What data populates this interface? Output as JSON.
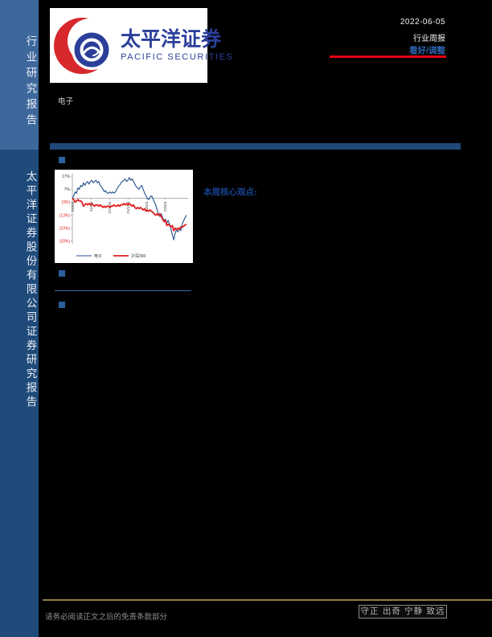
{
  "sidebar": {
    "top_label": "行业研究报告",
    "bottom_label": "太平洋证券股份有限公司证券研究报告"
  },
  "logo": {
    "cn": "太平洋证券",
    "en": "PACIFIC SECURITIES"
  },
  "header": {
    "date": "2022-06-05",
    "report_type": "行业周报",
    "rating": "看好/调整"
  },
  "industry_label": "电子",
  "section": {
    "core_view_label": "本周核心观点:"
  },
  "colors": {
    "sidebar_top_bg": "#3e689c",
    "sidebar_bottom_bg": "#1f4a7a",
    "accent_bar": "#1f4977",
    "bullet": "#2d5e9e",
    "rating_blue": "#2f62b0",
    "rating_underline_red": "#e60012",
    "logo_red": "#d7282d",
    "logo_blue": "#2b3f9a",
    "footer_line_gold": "#8e7f43",
    "series_electronics": "#24508c",
    "series_hs300": "#e01f1f"
  },
  "chart_data": {
    "type": "line",
    "title": "",
    "xlabel": "",
    "ylabel": "",
    "x_unit": "months since 2021-06",
    "xlim": [
      0,
      12.5
    ],
    "ylim": [
      -35,
      19
    ],
    "zero_line": true,
    "legend_position": "bottom",
    "x_ticks": {
      "labels": [
        "21/6/4",
        "21/8/4",
        "21/10/4",
        "21/12/4",
        "22/2/4",
        "22/4/4"
      ],
      "values": [
        0,
        2,
        4,
        6,
        8,
        10
      ]
    },
    "y_ticks": {
      "labels": [
        "17%",
        "7%",
        "(3%)",
        "(13%)",
        "(23%)",
        "(33%)"
      ],
      "values": [
        17,
        7,
        -3,
        -13,
        -23,
        -33
      ]
    },
    "series": [
      {
        "name": "电子",
        "color": "#24508c",
        "width": 1.1,
        "points": [
          [
            0,
            0
          ],
          [
            0.15,
            2
          ],
          [
            0.3,
            5
          ],
          [
            0.45,
            4
          ],
          [
            0.6,
            8
          ],
          [
            0.75,
            7
          ],
          [
            0.9,
            10
          ],
          [
            1.05,
            9
          ],
          [
            1.2,
            12
          ],
          [
            1.35,
            10
          ],
          [
            1.5,
            12
          ],
          [
            1.65,
            13
          ],
          [
            1.8,
            11
          ],
          [
            1.95,
            13
          ],
          [
            2.1,
            14
          ],
          [
            2.25,
            12
          ],
          [
            2.4,
            13
          ],
          [
            2.55,
            14
          ],
          [
            2.7,
            12
          ],
          [
            2.85,
            13
          ],
          [
            3.0,
            10
          ],
          [
            3.15,
            9
          ],
          [
            3.3,
            7
          ],
          [
            3.45,
            5
          ],
          [
            3.6,
            6
          ],
          [
            3.75,
            4
          ],
          [
            3.9,
            4
          ],
          [
            4.05,
            5
          ],
          [
            4.2,
            4
          ],
          [
            4.35,
            5
          ],
          [
            4.5,
            4
          ],
          [
            4.65,
            5
          ],
          [
            4.8,
            7
          ],
          [
            4.95,
            9
          ],
          [
            5.1,
            10
          ],
          [
            5.25,
            12
          ],
          [
            5.4,
            13
          ],
          [
            5.55,
            14
          ],
          [
            5.7,
            15
          ],
          [
            5.85,
            13
          ],
          [
            6.0,
            14
          ],
          [
            6.15,
            16
          ],
          [
            6.3,
            14
          ],
          [
            6.45,
            15
          ],
          [
            6.6,
            13
          ],
          [
            6.75,
            11
          ],
          [
            6.9,
            9
          ],
          [
            7.05,
            8
          ],
          [
            7.2,
            7
          ],
          [
            7.35,
            9
          ],
          [
            7.5,
            10
          ],
          [
            7.65,
            7
          ],
          [
            7.8,
            4
          ],
          [
            7.95,
            2
          ],
          [
            8.1,
            0
          ],
          [
            8.25,
            -1
          ],
          [
            8.4,
            1
          ],
          [
            8.55,
            2
          ],
          [
            8.7,
            0
          ],
          [
            8.85,
            -3
          ],
          [
            9.0,
            -5
          ],
          [
            9.15,
            -9
          ],
          [
            9.3,
            -12
          ],
          [
            9.45,
            -14
          ],
          [
            9.6,
            -12
          ],
          [
            9.75,
            -15
          ],
          [
            9.9,
            -17
          ],
          [
            10.05,
            -16
          ],
          [
            10.2,
            -19
          ],
          [
            10.35,
            -17
          ],
          [
            10.5,
            -20
          ],
          [
            10.65,
            -24
          ],
          [
            10.8,
            -28
          ],
          [
            10.95,
            -32
          ],
          [
            11.1,
            -27
          ],
          [
            11.25,
            -24
          ],
          [
            11.4,
            -26
          ],
          [
            11.55,
            -23
          ],
          [
            11.7,
            -25
          ],
          [
            11.9,
            -19
          ],
          [
            12.1,
            -16
          ],
          [
            12.3,
            -13
          ]
        ]
      },
      {
        "name": "沪深300",
        "color": "#e01f1f",
        "width": 1.8,
        "points": [
          [
            0,
            0
          ],
          [
            0.15,
            -1
          ],
          [
            0.3,
            -3
          ],
          [
            0.45,
            -2
          ],
          [
            0.6,
            -1
          ],
          [
            0.75,
            -2
          ],
          [
            0.9,
            -2
          ],
          [
            1.05,
            -3
          ],
          [
            1.2,
            -6
          ],
          [
            1.35,
            -5
          ],
          [
            1.5,
            -4
          ],
          [
            1.65,
            -5
          ],
          [
            1.8,
            -4
          ],
          [
            1.95,
            -5
          ],
          [
            2.1,
            -4
          ],
          [
            2.25,
            -5
          ],
          [
            2.4,
            -6
          ],
          [
            2.55,
            -5
          ],
          [
            2.7,
            -5
          ],
          [
            2.85,
            -6
          ],
          [
            3.0,
            -5
          ],
          [
            3.15,
            -6
          ],
          [
            3.3,
            -7
          ],
          [
            3.45,
            -6
          ],
          [
            3.6,
            -7
          ],
          [
            3.75,
            -6
          ],
          [
            3.9,
            -6
          ],
          [
            4.05,
            -7
          ],
          [
            4.2,
            -6
          ],
          [
            4.35,
            -6
          ],
          [
            4.5,
            -5
          ],
          [
            4.65,
            -6
          ],
          [
            4.8,
            -6
          ],
          [
            4.95,
            -5
          ],
          [
            5.1,
            -6
          ],
          [
            5.25,
            -5
          ],
          [
            5.4,
            -5
          ],
          [
            5.55,
            -4
          ],
          [
            5.7,
            -5
          ],
          [
            5.85,
            -4
          ],
          [
            6.0,
            -5
          ],
          [
            6.15,
            -4
          ],
          [
            6.3,
            -5
          ],
          [
            6.45,
            -6
          ],
          [
            6.6,
            -5
          ],
          [
            6.75,
            -7
          ],
          [
            6.9,
            -8
          ],
          [
            7.05,
            -7
          ],
          [
            7.2,
            -8
          ],
          [
            7.35,
            -7
          ],
          [
            7.5,
            -8
          ],
          [
            7.65,
            -9
          ],
          [
            7.8,
            -8
          ],
          [
            7.95,
            -10
          ],
          [
            8.1,
            -9
          ],
          [
            8.25,
            -10
          ],
          [
            8.4,
            -9
          ],
          [
            8.55,
            -10
          ],
          [
            8.7,
            -11
          ],
          [
            8.85,
            -12
          ],
          [
            9.0,
            -13
          ],
          [
            9.15,
            -12
          ],
          [
            9.3,
            -13
          ],
          [
            9.45,
            -12
          ],
          [
            9.6,
            -14
          ],
          [
            9.75,
            -16
          ],
          [
            9.9,
            -18
          ],
          [
            10.05,
            -17
          ],
          [
            10.2,
            -21
          ],
          [
            10.35,
            -20
          ],
          [
            10.5,
            -21
          ],
          [
            10.65,
            -22
          ],
          [
            10.8,
            -21
          ],
          [
            10.95,
            -25
          ],
          [
            11.1,
            -23
          ],
          [
            11.25,
            -24
          ],
          [
            11.4,
            -23
          ],
          [
            11.55,
            -24
          ],
          [
            11.7,
            -22
          ],
          [
            11.9,
            -22
          ],
          [
            12.1,
            -21
          ],
          [
            12.3,
            -20
          ]
        ]
      }
    ]
  },
  "footer": {
    "disclaimer": "请务必阅读正文之后的免责条款部分",
    "motto": "守正 出奇 宁静 致远"
  }
}
